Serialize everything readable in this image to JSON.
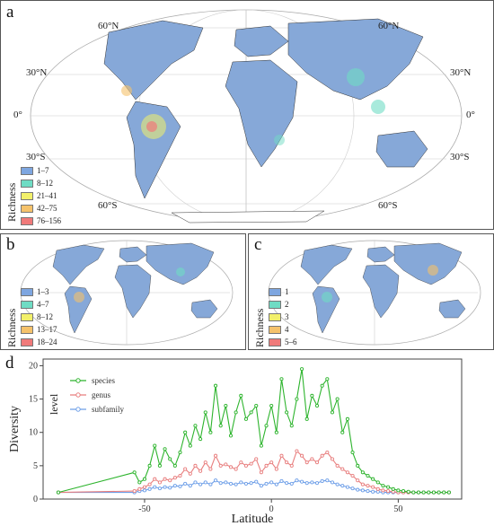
{
  "panels": {
    "a": {
      "letter": "a",
      "legend_title": "Richness",
      "legend": [
        {
          "label": "1–7",
          "color": "#7ea6e0"
        },
        {
          "label": "8–12",
          "color": "#6fdcc4"
        },
        {
          "label": "21–41",
          "color": "#f2f06a"
        },
        {
          "label": "42–75",
          "color": "#f5c26b"
        },
        {
          "label": "76–156",
          "color": "#f07a7a"
        }
      ],
      "lat_labels": {
        "n60l": "60°N",
        "n60r": "60°N",
        "n30l": "30°N",
        "n30r": "30°N",
        "eq": "0°",
        "s30l": "30°S",
        "s30r": "30°S",
        "s60l": "60°S",
        "s60r": "60°S"
      }
    },
    "b": {
      "letter": "b",
      "legend_title": "Richness",
      "legend": [
        {
          "label": "1–3",
          "color": "#7ea6e0"
        },
        {
          "label": "4–7",
          "color": "#6fdcc4"
        },
        {
          "label": "8–12",
          "color": "#f2f06a"
        },
        {
          "label": "13–17",
          "color": "#f5c26b"
        },
        {
          "label": "18–24",
          "color": "#f07a7a"
        }
      ]
    },
    "c": {
      "letter": "c",
      "legend_title": "Richness",
      "legend": [
        {
          "label": "1",
          "color": "#7ea6e0"
        },
        {
          "label": "2",
          "color": "#6fdcc4"
        },
        {
          "label": "3",
          "color": "#f2f06a"
        },
        {
          "label": "4",
          "color": "#f5c26b"
        },
        {
          "label": "5–6",
          "color": "#f07a7a"
        }
      ]
    },
    "d": {
      "letter": "d"
    }
  },
  "chart_data": {
    "type": "line",
    "xlabel": "Latitude",
    "ylabel": "Diversity",
    "xlim": [
      -90,
      75
    ],
    "ylim": [
      0,
      21
    ],
    "xticks": [
      -50,
      0,
      50
    ],
    "yticks": [
      0,
      5,
      10,
      15,
      20
    ],
    "legend_title": "level",
    "legend_position": "top-left",
    "grid": false,
    "x": [
      -84,
      -54,
      -52,
      -50,
      -48,
      -46,
      -44,
      -42,
      -40,
      -38,
      -36,
      -34,
      -32,
      -30,
      -28,
      -26,
      -24,
      -22,
      -20,
      -18,
      -16,
      -14,
      -12,
      -10,
      -8,
      -6,
      -4,
      -2,
      0,
      2,
      4,
      6,
      8,
      10,
      12,
      14,
      16,
      18,
      20,
      22,
      24,
      26,
      28,
      30,
      32,
      34,
      36,
      38,
      40,
      42,
      44,
      46,
      48,
      50,
      52,
      54,
      56,
      58,
      60,
      62,
      64,
      66,
      68,
      70
    ],
    "series": [
      {
        "name": "species",
        "color": "#2db42d",
        "values": [
          1,
          4,
          2.5,
          3,
          5,
          8,
          5,
          7.5,
          6,
          5,
          7,
          10,
          8,
          11,
          9,
          13,
          10,
          17,
          11,
          14,
          9.5,
          13,
          15.5,
          12,
          13,
          14,
          8,
          11,
          14,
          10,
          18,
          13,
          11,
          15,
          19.5,
          12,
          15.5,
          14,
          17,
          18,
          13,
          15,
          10,
          12,
          7,
          5,
          4,
          3.5,
          3,
          2.5,
          2,
          1.8,
          1.5,
          1.3,
          1.2,
          1.1,
          1,
          1,
          1,
          1,
          1,
          1,
          1,
          1
        ]
      },
      {
        "name": "genus",
        "color": "#e87e7e",
        "values": [
          1,
          1.2,
          1.5,
          1.8,
          2.2,
          3,
          2.5,
          3,
          2.8,
          3.2,
          3.5,
          4.5,
          3.8,
          5,
          4.2,
          5.5,
          4.5,
          6.5,
          5,
          5.2,
          4.8,
          4.5,
          5.5,
          5,
          5.3,
          6,
          4,
          5,
          5.5,
          4.5,
          6.5,
          5.5,
          5,
          7.2,
          6.5,
          5.5,
          6,
          5.5,
          6.5,
          7,
          6,
          5,
          4.5,
          4,
          3.5,
          2.8,
          2.2,
          2,
          1.8,
          1.5,
          1.3,
          1.2,
          1.1,
          1,
          1,
          1,
          1,
          1,
          1,
          1,
          1,
          1,
          1,
          1
        ]
      },
      {
        "name": "subfamily",
        "color": "#6e9fe8",
        "values": [
          1,
          1,
          1.2,
          1.3,
          1.5,
          1.8,
          1.6,
          1.8,
          1.7,
          2,
          1.9,
          2.3,
          2,
          2.5,
          2.2,
          2.5,
          2.2,
          2.8,
          2.4,
          2.5,
          2.3,
          2.2,
          2.5,
          2.3,
          2.4,
          2.6,
          2,
          2.3,
          2.5,
          2.2,
          2.7,
          2.4,
          2.3,
          2.8,
          2.6,
          2.4,
          2.5,
          2.4,
          2.7,
          2.8,
          2.5,
          2.2,
          2,
          1.8,
          1.6,
          1.4,
          1.3,
          1.2,
          1.1,
          1.1,
          1,
          1,
          1,
          1,
          1,
          1,
          1,
          1,
          1,
          1,
          1,
          1,
          1,
          1
        ]
      }
    ]
  }
}
